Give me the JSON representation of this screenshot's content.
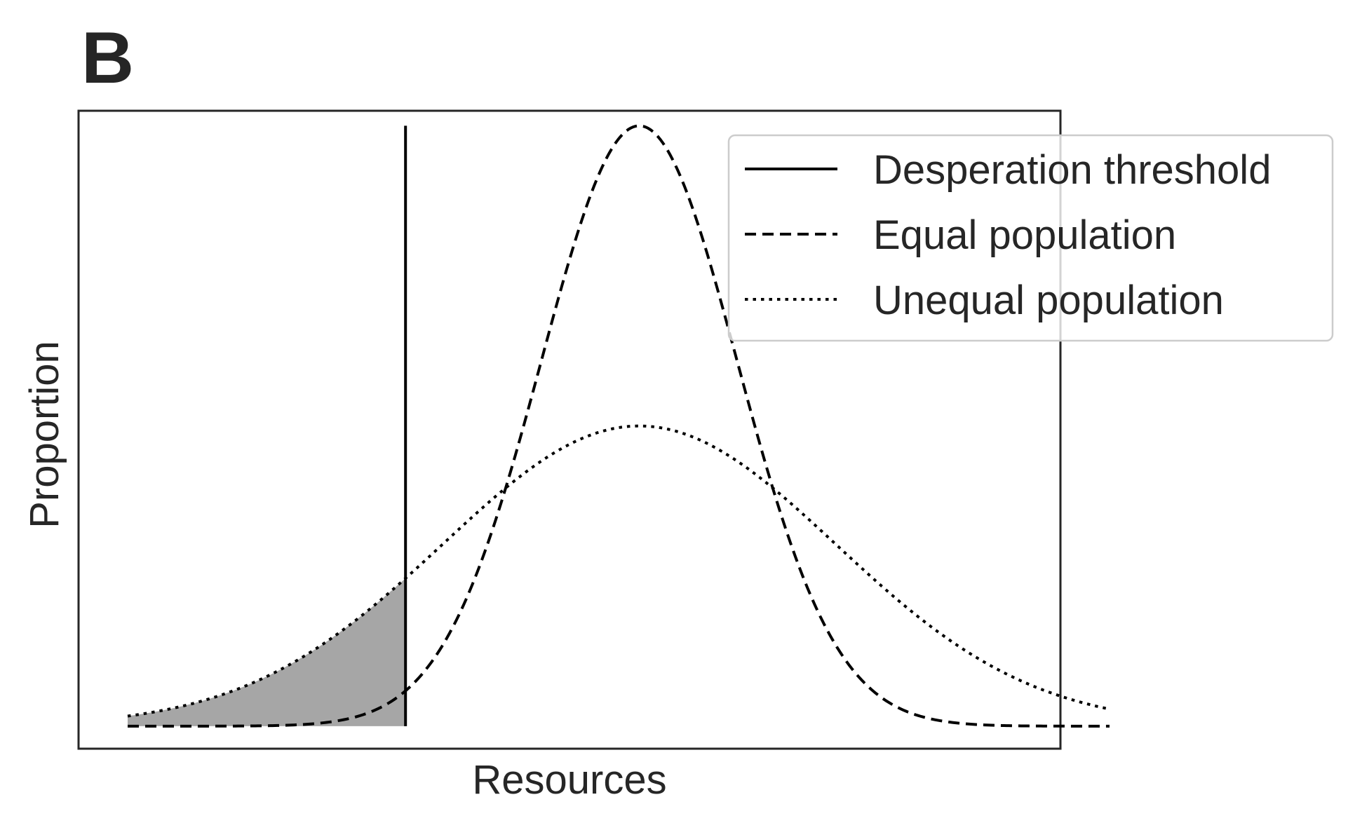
{
  "panel_label": "B",
  "chart_data": {
    "type": "line",
    "title": "",
    "xlabel": "Resources",
    "ylabel": "Proportion",
    "x_ticks": [],
    "y_ticks": [],
    "xlim": [
      0,
      10
    ],
    "ylim": [
      -0.03,
      0.82
    ],
    "grid": false,
    "legend_position": "top-right",
    "threshold": {
      "name": "Desperation threshold",
      "x": 3.33,
      "line_style": "solid",
      "color": "#000000"
    },
    "series": [
      {
        "name": "Equal population",
        "distribution": "normal",
        "mean": 5.71,
        "sd": 1.0,
        "x_start": 0.5,
        "x_end": 10.5,
        "line_style": "dashed",
        "color": "#000000"
      },
      {
        "name": "Unequal population",
        "distribution": "normal",
        "mean": 5.71,
        "sd": 2.0,
        "x_start": 0.5,
        "x_end": 10.5,
        "line_style": "dotted",
        "color": "#000000"
      }
    ],
    "shaded_region": {
      "description_series": "Unequal population",
      "x_from": 0.5,
      "x_to": 3.33,
      "color": "#a6a6a6"
    },
    "legend": [
      {
        "label": "Desperation threshold",
        "line_style": "solid"
      },
      {
        "label": "Equal population",
        "line_style": "dashed"
      },
      {
        "label": "Unequal population",
        "line_style": "dotted"
      }
    ]
  }
}
